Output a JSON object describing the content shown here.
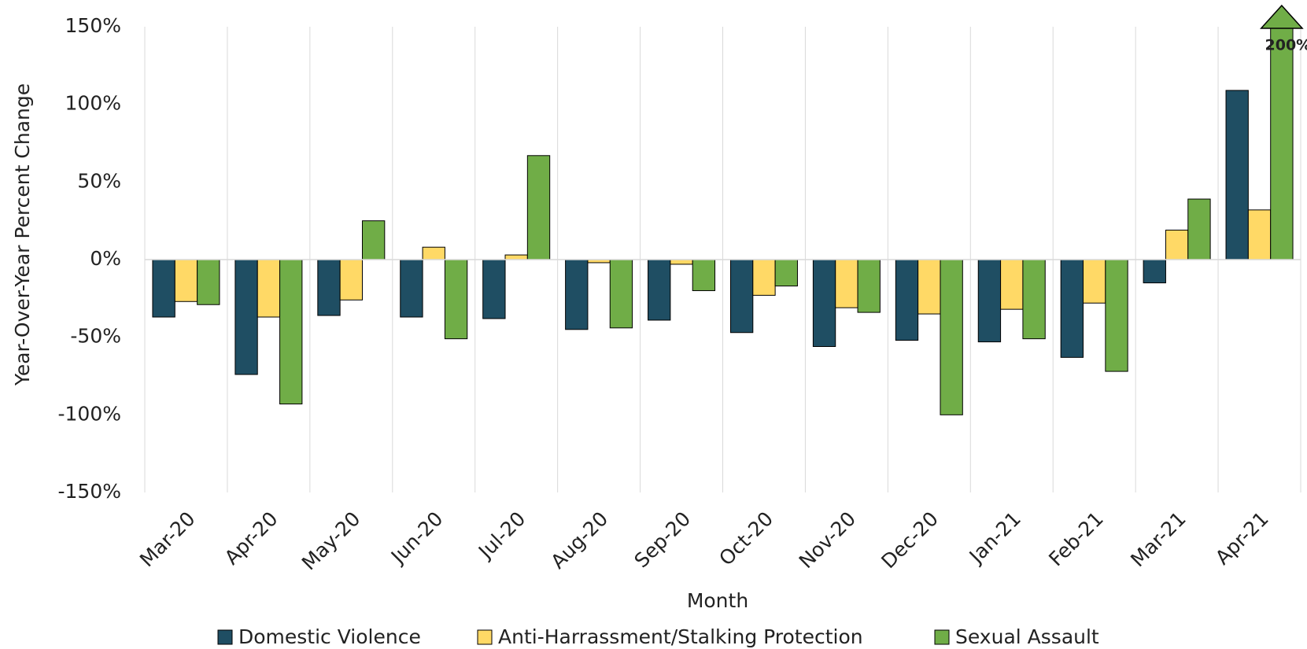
{
  "chart_data": {
    "type": "bar",
    "y_label": "Year-Over-Year Percent Change",
    "x_label": "Month",
    "categories": [
      "Mar-20",
      "Apr-20",
      "May-20",
      "Jun-20",
      "Jul-20",
      "Aug-20",
      "Sep-20",
      "Oct-20",
      "Nov-20",
      "Dec-20",
      "Jan-21",
      "Feb-21",
      "Mar-21",
      "Apr-21"
    ],
    "series": [
      {
        "name": "Domestic Violence",
        "color": "#1f4e63",
        "values": [
          -37,
          -74,
          -36,
          -37,
          -38,
          -45,
          -39,
          -47,
          -56,
          -52,
          -53,
          -63,
          -15,
          109
        ]
      },
      {
        "name": "Anti-Harrassment/Stalking Protection",
        "color": "#ffd966",
        "values": [
          -27,
          -37,
          -26,
          8,
          3,
          -2,
          -3,
          -23,
          -31,
          -35,
          -32,
          -28,
          19,
          32
        ]
      },
      {
        "name": "Sexual Assault",
        "color": "#70ad47",
        "values": [
          -29,
          -93,
          25,
          -51,
          67,
          -44,
          -20,
          -17,
          -34,
          -100,
          -51,
          -72,
          39,
          200
        ],
        "value_labels": [
          null,
          null,
          null,
          null,
          null,
          null,
          null,
          null,
          null,
          null,
          null,
          null,
          null,
          "200%"
        ]
      }
    ],
    "ylim": [
      -150,
      150
    ],
    "yticks": [
      {
        "value": -150,
        "label": "-150%"
      },
      {
        "value": -100,
        "label": "-100%"
      },
      {
        "value": -50,
        "label": "-50%"
      },
      {
        "value": 0,
        "label": "0%"
      },
      {
        "value": 50,
        "label": "50%"
      },
      {
        "value": 100,
        "label": "100%"
      },
      {
        "value": 150,
        "label": "150%"
      }
    ],
    "grid": "vertical",
    "legend": "bottom"
  }
}
